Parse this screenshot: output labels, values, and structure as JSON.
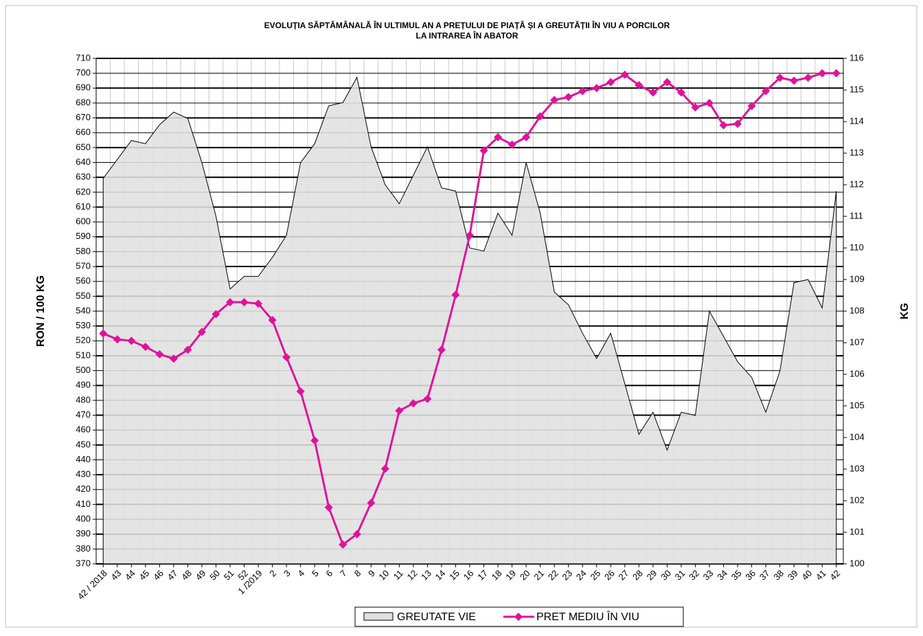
{
  "chart_data": {
    "type": "line",
    "title": [
      "EVOLUȚIA SĂPTĂMÂNALĂ ÎN ULTIMUL AN A PREȚULUI  DE PIAȚĂ ȘI A GREUTĂȚII  ÎN VIU A PORCILOR",
      "LA INTRAREA ÎN ABATOR"
    ],
    "ylabel": "RON / 100 KG",
    "y2label": "KG",
    "categories": [
      "42 / 2018",
      "43",
      "44",
      "45",
      "46",
      "47",
      "48",
      "49",
      "50",
      "51",
      "52",
      "1 /2019",
      "2",
      "3",
      "4",
      "5",
      "6",
      "7",
      "8",
      "9",
      "10",
      "11",
      "12",
      "13",
      "14",
      "15",
      "16",
      "17",
      "18",
      "19",
      "20",
      "21",
      "22",
      "23",
      "24",
      "25",
      "26",
      "27",
      "28",
      "29",
      "30",
      "31",
      "32",
      "33",
      "34",
      "35",
      "36",
      "37",
      "38",
      "39",
      "40",
      "41",
      "42"
    ],
    "ylim": [
      370,
      710
    ],
    "yticks": [
      370,
      380,
      390,
      400,
      410,
      420,
      430,
      440,
      450,
      460,
      470,
      480,
      490,
      500,
      510,
      520,
      530,
      540,
      550,
      560,
      570,
      580,
      590,
      600,
      610,
      620,
      630,
      640,
      650,
      660,
      670,
      680,
      690,
      700,
      710
    ],
    "y2lim": [
      100,
      116
    ],
    "y2ticks": [
      100,
      101,
      102,
      103,
      104,
      105,
      106,
      107,
      108,
      109,
      110,
      111,
      112,
      113,
      114,
      115,
      116
    ],
    "grid": true,
    "legend": "bottom",
    "series": [
      {
        "name": "GREUTATE VIE",
        "type": "area",
        "axis": "y2",
        "color": "#e0e0e0",
        "values": [
          112.2,
          112.8,
          113.4,
          113.3,
          113.9,
          114.3,
          114.1,
          112.7,
          111.0,
          108.7,
          109.1,
          109.1,
          109.7,
          110.4,
          112.7,
          113.3,
          114.5,
          114.6,
          115.4,
          113.2,
          112.0,
          111.4,
          112.3,
          113.2,
          111.9,
          111.8,
          110.0,
          109.9,
          111.1,
          110.4,
          112.7,
          111.1,
          108.6,
          108.2,
          107.3,
          106.5,
          107.3,
          105.7,
          104.1,
          104.8,
          103.6,
          104.8,
          104.7,
          108.0,
          107.2,
          106.4,
          105.9,
          104.8,
          106.1,
          108.9,
          109.0,
          108.1,
          111.8
        ]
      },
      {
        "name": "PRET MEDIU ÎN VIU",
        "type": "line",
        "color": "#e0129a",
        "values": [
          525,
          521,
          520,
          516,
          511,
          508,
          514,
          526,
          538,
          546,
          546,
          545,
          534,
          509,
          486,
          453,
          408,
          383,
          390,
          411,
          434,
          473,
          478,
          481,
          514,
          551,
          591,
          648,
          657,
          652,
          657,
          671,
          682,
          684,
          688,
          690,
          694,
          699,
          692,
          687,
          694,
          687,
          677,
          680,
          665,
          666,
          678,
          688,
          697,
          695,
          697,
          700,
          700
        ]
      }
    ]
  }
}
